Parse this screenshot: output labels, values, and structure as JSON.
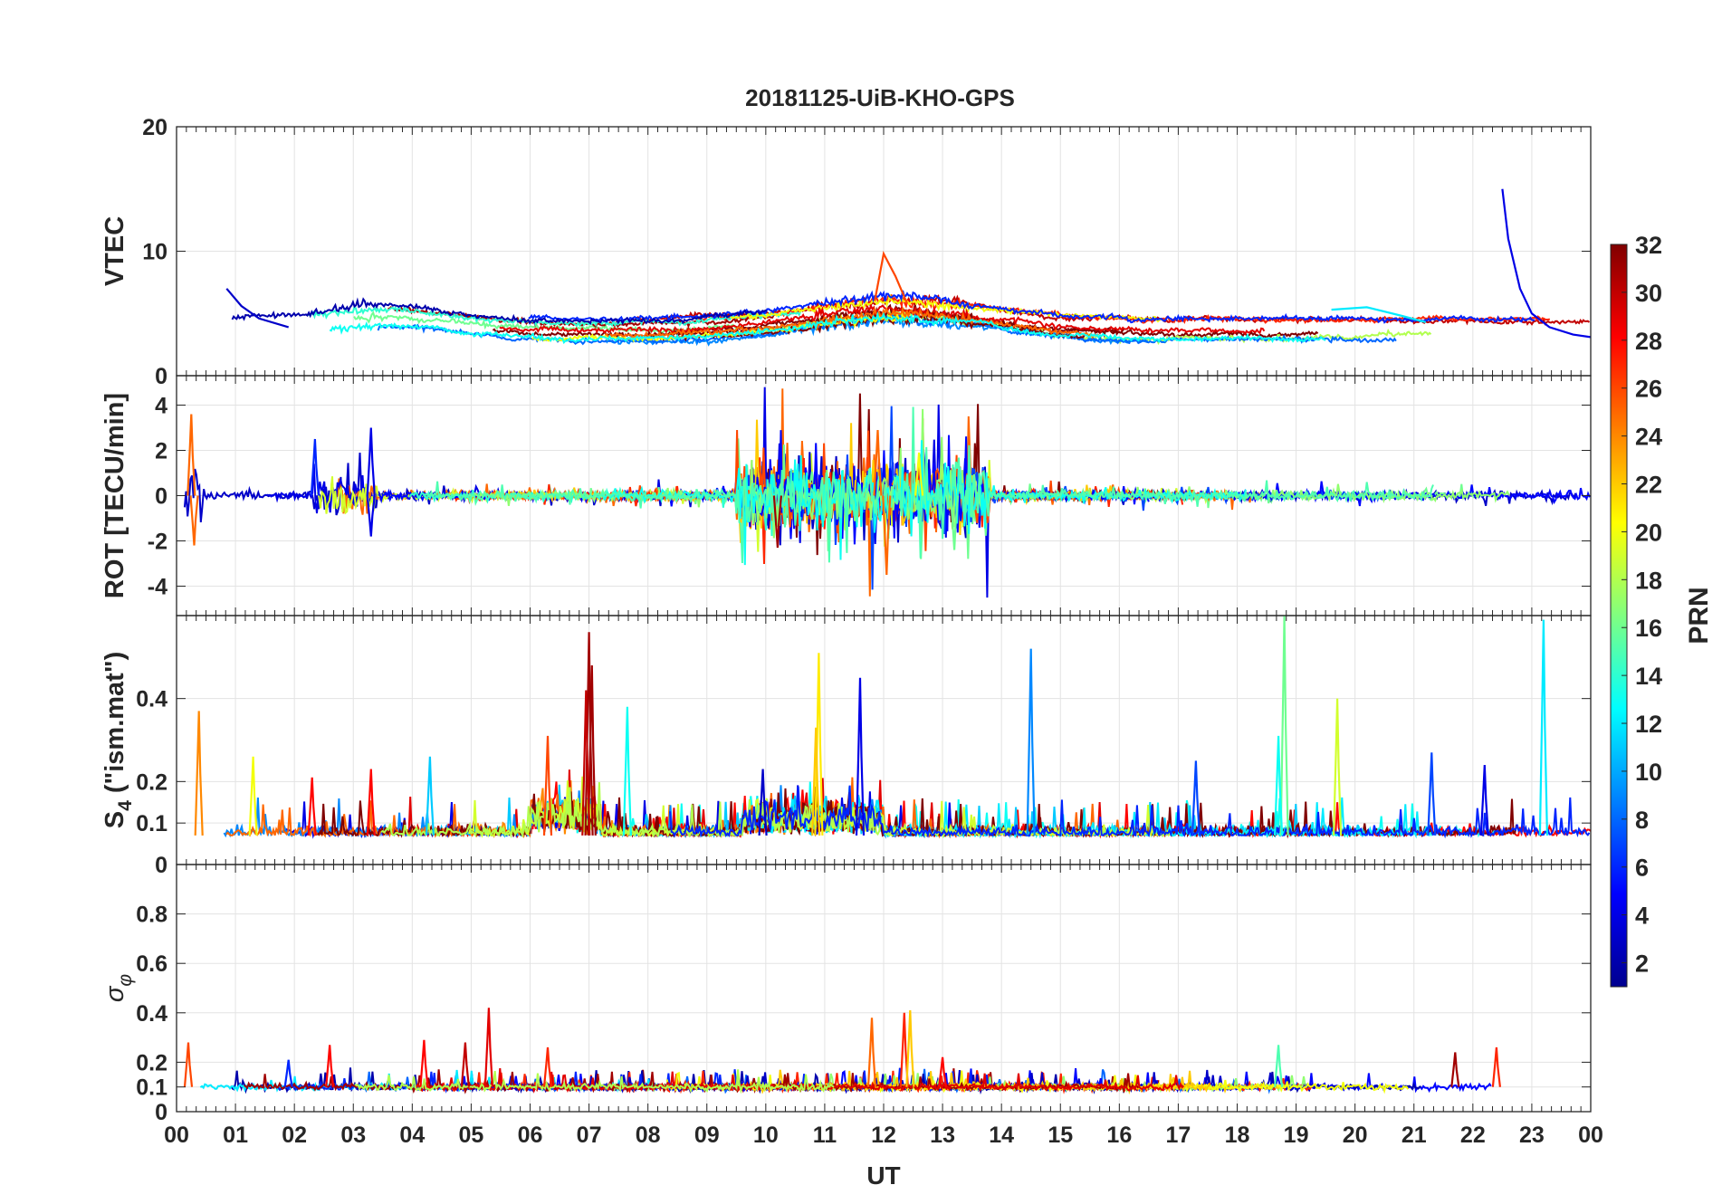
{
  "chart_data": {
    "type": "line",
    "title": "20181125-UiB-KHO-GPS",
    "xlabel": "UT",
    "x_ticks": [
      "00",
      "01",
      "02",
      "03",
      "04",
      "05",
      "06",
      "07",
      "08",
      "09",
      "10",
      "11",
      "12",
      "13",
      "14",
      "15",
      "16",
      "17",
      "18",
      "19",
      "20",
      "21",
      "22",
      "23",
      "00"
    ],
    "xlim_hours": [
      0,
      24
    ],
    "grid": true,
    "colorbar": {
      "label": "PRN",
      "range": [
        1,
        32
      ],
      "ticks": [
        "2",
        "4",
        "6",
        "8",
        "10",
        "12",
        "14",
        "16",
        "18",
        "20",
        "22",
        "24",
        "26",
        "28",
        "30",
        "32"
      ],
      "colormap": "jet",
      "stops": [
        "#00008f",
        "#0000ff",
        "#0080ff",
        "#00ffff",
        "#80ff80",
        "#ffff00",
        "#ff8000",
        "#ff0000",
        "#800000"
      ]
    },
    "panels": [
      {
        "id": "vtec",
        "ylabel": "VTEC",
        "ylim": [
          0,
          20
        ],
        "y_ticks": [
          "0",
          "10",
          "20"
        ],
        "baseline": 3.6,
        "noise": 1.1,
        "activity_windows": [
          [
            2.2,
            3.5,
            1.3
          ],
          [
            10.8,
            13.5,
            2.0
          ]
        ],
        "highlight_traces": [
          {
            "prn": 4,
            "points": [
              [
                22.5,
                15.0
              ],
              [
                22.6,
                11.0
              ],
              [
                22.8,
                7.0
              ],
              [
                23.0,
                5.0
              ],
              [
                23.3,
                3.9
              ],
              [
                23.7,
                3.3
              ],
              [
                24.0,
                3.1
              ]
            ]
          },
          {
            "prn": 26,
            "points": [
              [
                11.85,
                6.0
              ],
              [
                12.0,
                9.8
              ],
              [
                12.2,
                8.0
              ],
              [
                12.4,
                5.8
              ]
            ]
          },
          {
            "prn": 12,
            "points": [
              [
                19.6,
                5.3
              ],
              [
                20.2,
                5.5
              ],
              [
                20.8,
                4.8
              ],
              [
                21.2,
                4.3
              ]
            ]
          },
          {
            "prn": 3,
            "points": [
              [
                0.85,
                7.0
              ],
              [
                1.1,
                5.6
              ],
              [
                1.4,
                4.6
              ],
              [
                1.9,
                3.9
              ]
            ]
          }
        ]
      },
      {
        "id": "rot",
        "ylabel": "ROT [TECU/min]",
        "ylim": [
          -5.3,
          5.3
        ],
        "y_ticks": [
          "-4",
          "-2",
          "0",
          "2",
          "4"
        ],
        "baseline": 0,
        "noise": 0.18,
        "activity_windows": [
          [
            0.0,
            0.5,
            2.0
          ],
          [
            9.5,
            13.8,
            1.8
          ],
          [
            2.3,
            3.4,
            1.0
          ]
        ],
        "spikes": [
          {
            "t": 0.25,
            "v": 3.6,
            "prn": 25
          },
          {
            "t": 0.3,
            "v": -2.2,
            "prn": 25
          },
          {
            "t": 2.35,
            "v": 2.5,
            "prn": 6
          },
          {
            "t": 3.3,
            "v": 3.0,
            "prn": 4
          },
          {
            "t": 3.3,
            "v": -1.8,
            "prn": 4
          },
          {
            "t": 10.2,
            "v": -2.3,
            "prn": 31
          },
          {
            "t": 11.9,
            "v": 2.9,
            "prn": 25
          },
          {
            "t": 12.05,
            "v": -3.5,
            "prn": 25
          },
          {
            "t": 13.2,
            "v": -2.4,
            "prn": 16
          },
          {
            "t": 12.6,
            "v": 1.9,
            "prn": 20
          }
        ]
      },
      {
        "id": "s4",
        "ylabel": "S4 (\"ism.mat\")",
        "ylabel_main": "S",
        "ylabel_sub": "4",
        "ylabel_rest": " (\"ism.mat\")",
        "ylim": [
          0,
          0.6
        ],
        "y_ticks": [
          "0",
          "0.1",
          "0.2",
          "0.4"
        ],
        "baseline": 0.07,
        "noise": 0.02,
        "activity_windows": [
          [
            6.0,
            7.2,
            0.05
          ],
          [
            9.6,
            12.0,
            0.04
          ]
        ],
        "spikes": [
          {
            "t": 0.38,
            "v": 0.37,
            "prn": 24
          },
          {
            "t": 6.3,
            "v": 0.31,
            "prn": 26
          },
          {
            "t": 7.0,
            "v": 0.56,
            "prn": 31
          },
          {
            "t": 7.05,
            "v": 0.48,
            "prn": 31
          },
          {
            "t": 6.95,
            "v": 0.42,
            "prn": 30
          },
          {
            "t": 7.65,
            "v": 0.38,
            "prn": 13
          },
          {
            "t": 9.95,
            "v": 0.23,
            "prn": 3
          },
          {
            "t": 10.9,
            "v": 0.51,
            "prn": 21
          },
          {
            "t": 10.85,
            "v": 0.33,
            "prn": 22
          },
          {
            "t": 11.6,
            "v": 0.45,
            "prn": 4
          },
          {
            "t": 14.5,
            "v": 0.52,
            "prn": 9
          },
          {
            "t": 18.8,
            "v": 0.6,
            "prn": 16
          },
          {
            "t": 18.7,
            "v": 0.31,
            "prn": 13
          },
          {
            "t": 19.7,
            "v": 0.4,
            "prn": 19
          },
          {
            "t": 23.2,
            "v": 0.59,
            "prn": 12
          },
          {
            "t": 22.2,
            "v": 0.24,
            "prn": 4
          },
          {
            "t": 21.3,
            "v": 0.27,
            "prn": 7
          },
          {
            "t": 3.3,
            "v": 0.23,
            "prn": 28
          },
          {
            "t": 4.3,
            "v": 0.26,
            "prn": 11
          },
          {
            "t": 1.3,
            "v": 0.26,
            "prn": 20
          },
          {
            "t": 2.3,
            "v": 0.21,
            "prn": 28
          },
          {
            "t": 17.3,
            "v": 0.25,
            "prn": 7
          }
        ]
      },
      {
        "id": "sigma_phi",
        "ylabel": "σφ",
        "ylabel_main": "σ",
        "ylabel_sub": "φ",
        "ylim": [
          0,
          1.0
        ],
        "y_ticks": [
          "0",
          "0.1",
          "0.2",
          "0.4",
          "0.6",
          "0.8"
        ],
        "baseline": 0.1,
        "noise": 0.012,
        "activity_windows": [],
        "spikes": [
          {
            "t": 0.2,
            "v": 0.28,
            "prn": 26
          },
          {
            "t": 5.3,
            "v": 0.42,
            "prn": 29
          },
          {
            "t": 4.9,
            "v": 0.28,
            "prn": 30
          },
          {
            "t": 12.35,
            "v": 0.4,
            "prn": 27
          },
          {
            "t": 12.45,
            "v": 0.41,
            "prn": 22
          },
          {
            "t": 11.8,
            "v": 0.38,
            "prn": 25
          },
          {
            "t": 2.6,
            "v": 0.27,
            "prn": 28
          },
          {
            "t": 4.2,
            "v": 0.29,
            "prn": 28
          },
          {
            "t": 6.3,
            "v": 0.26,
            "prn": 27
          },
          {
            "t": 18.7,
            "v": 0.27,
            "prn": 15
          },
          {
            "t": 22.4,
            "v": 0.26,
            "prn": 27
          },
          {
            "t": 21.7,
            "v": 0.24,
            "prn": 31
          },
          {
            "t": 1.9,
            "v": 0.21,
            "prn": 6
          },
          {
            "t": 13.0,
            "v": 0.22,
            "prn": 28
          }
        ]
      }
    ]
  }
}
